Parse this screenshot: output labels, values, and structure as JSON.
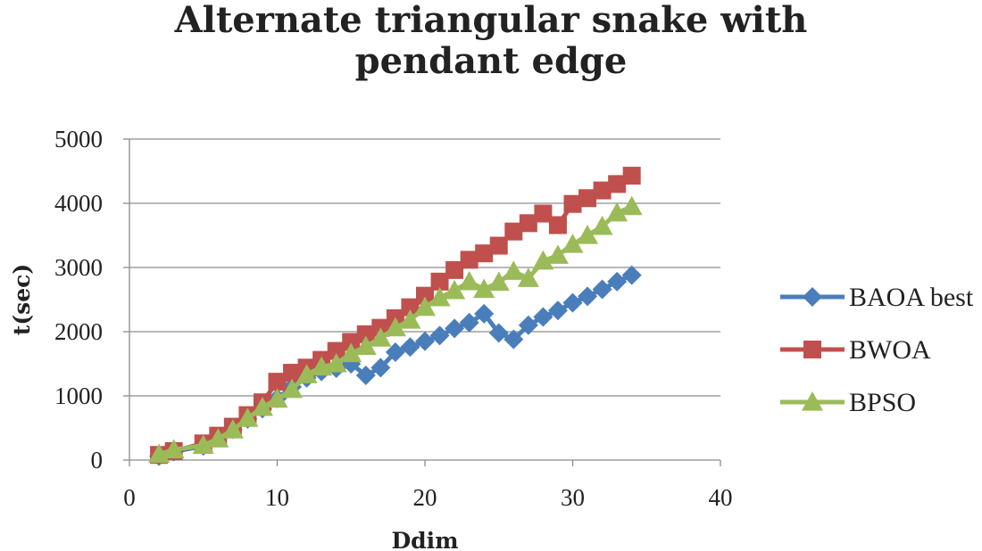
{
  "chart_data": {
    "type": "line",
    "title": [
      "Alternate triangular snake with",
      "pendant edge"
    ],
    "xlabel": "Ddim",
    "ylabel": "t(sec)",
    "xlim": [
      0,
      40
    ],
    "ylim": [
      0,
      5000
    ],
    "xticks": [
      0,
      10,
      20,
      30,
      40
    ],
    "yticks": [
      0,
      1000,
      2000,
      3000,
      4000,
      5000
    ],
    "grid": "horizontal",
    "legend_position": "right",
    "x": [
      2,
      3,
      5,
      6,
      7,
      8,
      9,
      10,
      11,
      12,
      13,
      14,
      15,
      16,
      17,
      18,
      19,
      20,
      21,
      22,
      23,
      24,
      25,
      26,
      27,
      28,
      29,
      30,
      31,
      32,
      33,
      34
    ],
    "series": [
      {
        "name": "BAOA best",
        "color": "#4a7ebb",
        "marker": "diamond",
        "values": [
          60,
          130,
          220,
          360,
          480,
          640,
          800,
          960,
          1140,
          1280,
          1380,
          1430,
          1500,
          1320,
          1440,
          1680,
          1760,
          1850,
          1940,
          2050,
          2140,
          2280,
          1980,
          1880,
          2100,
          2230,
          2330,
          2450,
          2550,
          2660,
          2780,
          2880
        ]
      },
      {
        "name": "BWOA",
        "color": "#c0504d",
        "marker": "square",
        "values": [
          80,
          140,
          260,
          380,
          520,
          700,
          900,
          1220,
          1360,
          1440,
          1560,
          1700,
          1840,
          1960,
          2060,
          2210,
          2380,
          2560,
          2780,
          2960,
          3120,
          3220,
          3340,
          3560,
          3690,
          3840,
          3660,
          3990,
          4080,
          4200,
          4300,
          4430
        ]
      },
      {
        "name": "BPSO",
        "color": "#9bbb59",
        "marker": "triangle",
        "values": [
          90,
          160,
          230,
          330,
          470,
          650,
          820,
          950,
          1100,
          1330,
          1450,
          1500,
          1660,
          1770,
          1900,
          2060,
          2180,
          2380,
          2530,
          2640,
          2780,
          2660,
          2770,
          2940,
          2830,
          3100,
          3190,
          3360,
          3500,
          3640,
          3850,
          3950
        ]
      }
    ]
  }
}
